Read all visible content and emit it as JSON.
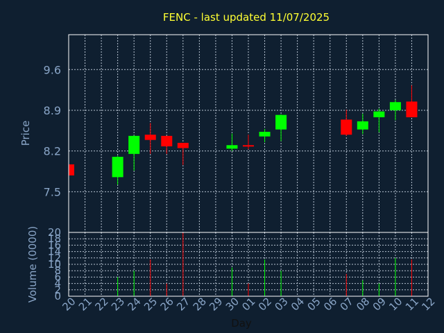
{
  "colors": {
    "background": "#0f1f30",
    "up": "#00ff00",
    "down": "#ff0000",
    "grid": "#b8c4d2",
    "frame": "#ffffff",
    "title": "#ffff33",
    "tick": "#8aa6c8"
  },
  "chart_data": {
    "type": "candlestick",
    "title": "FENC - last updated 11/07/2025",
    "xlabel": "Day",
    "ylabel": "Price",
    "volume_label": "Volume (0000)",
    "x_tick_labels": [
      "20",
      "21",
      "22",
      "23",
      "24",
      "25",
      "26",
      "27",
      "28",
      "29",
      "30",
      "01",
      "02",
      "03",
      "04",
      "05",
      "06",
      "07",
      "08",
      "09",
      "10",
      "11",
      "12"
    ],
    "price_ticks": [
      "9.6",
      "8.9",
      "8.2",
      "7.5"
    ],
    "price_tick_values": [
      9.6,
      8.9,
      8.2,
      7.5
    ],
    "ylim": [
      6.8,
      10.2
    ],
    "volume_ticks": [
      "20",
      "18",
      "16",
      "14",
      "12",
      "10",
      "8",
      "6",
      "4",
      "2",
      "0"
    ],
    "volume_tick_values": [
      20,
      18,
      16,
      14,
      12,
      10,
      8,
      6,
      4,
      2,
      0
    ],
    "volume_ylim": [
      0,
      20
    ],
    "grid": true,
    "candles": [
      {
        "day": "20",
        "open": 7.97,
        "high": 7.97,
        "low": 7.78,
        "close": 7.78,
        "volume": 0
      },
      {
        "day": "23",
        "open": 7.75,
        "high": 8.12,
        "low": 7.62,
        "close": 8.1,
        "volume": 6
      },
      {
        "day": "24",
        "open": 8.15,
        "high": 8.47,
        "low": 7.86,
        "close": 8.46,
        "volume": 8
      },
      {
        "day": "25",
        "open": 8.48,
        "high": 8.68,
        "low": 8.15,
        "close": 8.39,
        "volume": 11.5
      },
      {
        "day": "26",
        "open": 8.46,
        "high": 8.46,
        "low": 8.15,
        "close": 8.28,
        "volume": 4
      },
      {
        "day": "27",
        "open": 8.34,
        "high": 8.34,
        "low": 7.96,
        "close": 8.25,
        "volume": 20
      },
      {
        "day": "30",
        "open": 8.24,
        "high": 8.5,
        "low": 8.2,
        "close": 8.3,
        "volume": 9
      },
      {
        "day": "01",
        "open": 8.3,
        "high": 8.48,
        "low": 8.23,
        "close": 8.28,
        "volume": 4
      },
      {
        "day": "02",
        "open": 8.45,
        "high": 8.58,
        "low": 8.35,
        "close": 8.53,
        "volume": 11.5
      },
      {
        "day": "03",
        "open": 8.57,
        "high": 8.83,
        "low": 8.37,
        "close": 8.82,
        "volume": 8
      },
      {
        "day": "07",
        "open": 8.74,
        "high": 8.91,
        "low": 8.46,
        "close": 8.48,
        "volume": 7
      },
      {
        "day": "08",
        "open": 8.57,
        "high": 8.84,
        "low": 8.49,
        "close": 8.71,
        "volume": 5
      },
      {
        "day": "09",
        "open": 8.78,
        "high": 8.93,
        "low": 8.52,
        "close": 8.88,
        "volume": 4
      },
      {
        "day": "10",
        "open": 8.9,
        "high": 9.08,
        "low": 8.73,
        "close": 9.04,
        "volume": 12
      },
      {
        "day": "11",
        "open": 9.05,
        "high": 9.33,
        "low": 8.78,
        "close": 8.78,
        "volume": 11.5
      }
    ]
  }
}
